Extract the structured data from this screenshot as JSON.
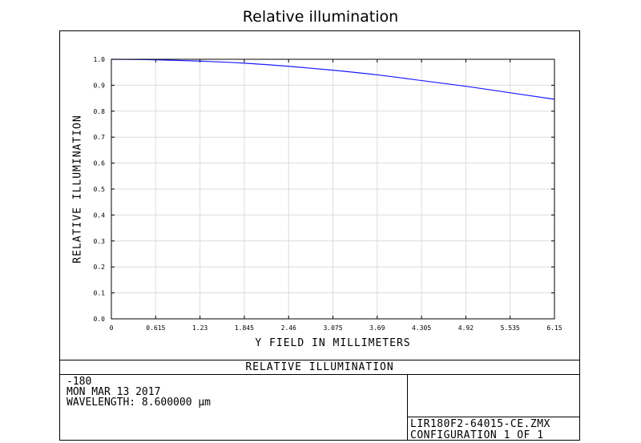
{
  "page_title": "Relative illumination",
  "footer": {
    "title": "RELATIVE ILLUMINATION",
    "line1": "-180",
    "line2": "MON MAR 13 2017",
    "line3": "WAVELENGTH: 8.600000 µm",
    "file": "LIR180F2-64015-CE.ZMX",
    "config": "CONFIGURATION 1 OF 1"
  },
  "chart_data": {
    "type": "line",
    "xlabel": "Y FIELD IN MILLIMETERS",
    "ylabel": "RELATIVE ILLUMINATION",
    "xlim": [
      0,
      6.15
    ],
    "ylim": [
      0,
      1.0
    ],
    "x_ticks": [
      "0",
      "0.615",
      "1.23",
      "1.845",
      "2.46",
      "3.075",
      "3.69",
      "4.305",
      "4.92",
      "5.535",
      "6.15"
    ],
    "y_ticks": [
      "0.0",
      "0.1",
      "0.2",
      "0.3",
      "0.4",
      "0.5",
      "0.6",
      "0.7",
      "0.8",
      "0.9",
      "1.0"
    ],
    "grid": true,
    "line_color": "#1a1aff",
    "series": [
      {
        "x": [
          0,
          0.615,
          1.23,
          1.845,
          2.46,
          3.075,
          3.69,
          4.305,
          4.92,
          5.535,
          6.15
        ],
        "y": [
          1.0,
          0.998,
          0.993,
          0.985,
          0.973,
          0.958,
          0.94,
          0.918,
          0.896,
          0.871,
          0.846
        ]
      }
    ]
  }
}
